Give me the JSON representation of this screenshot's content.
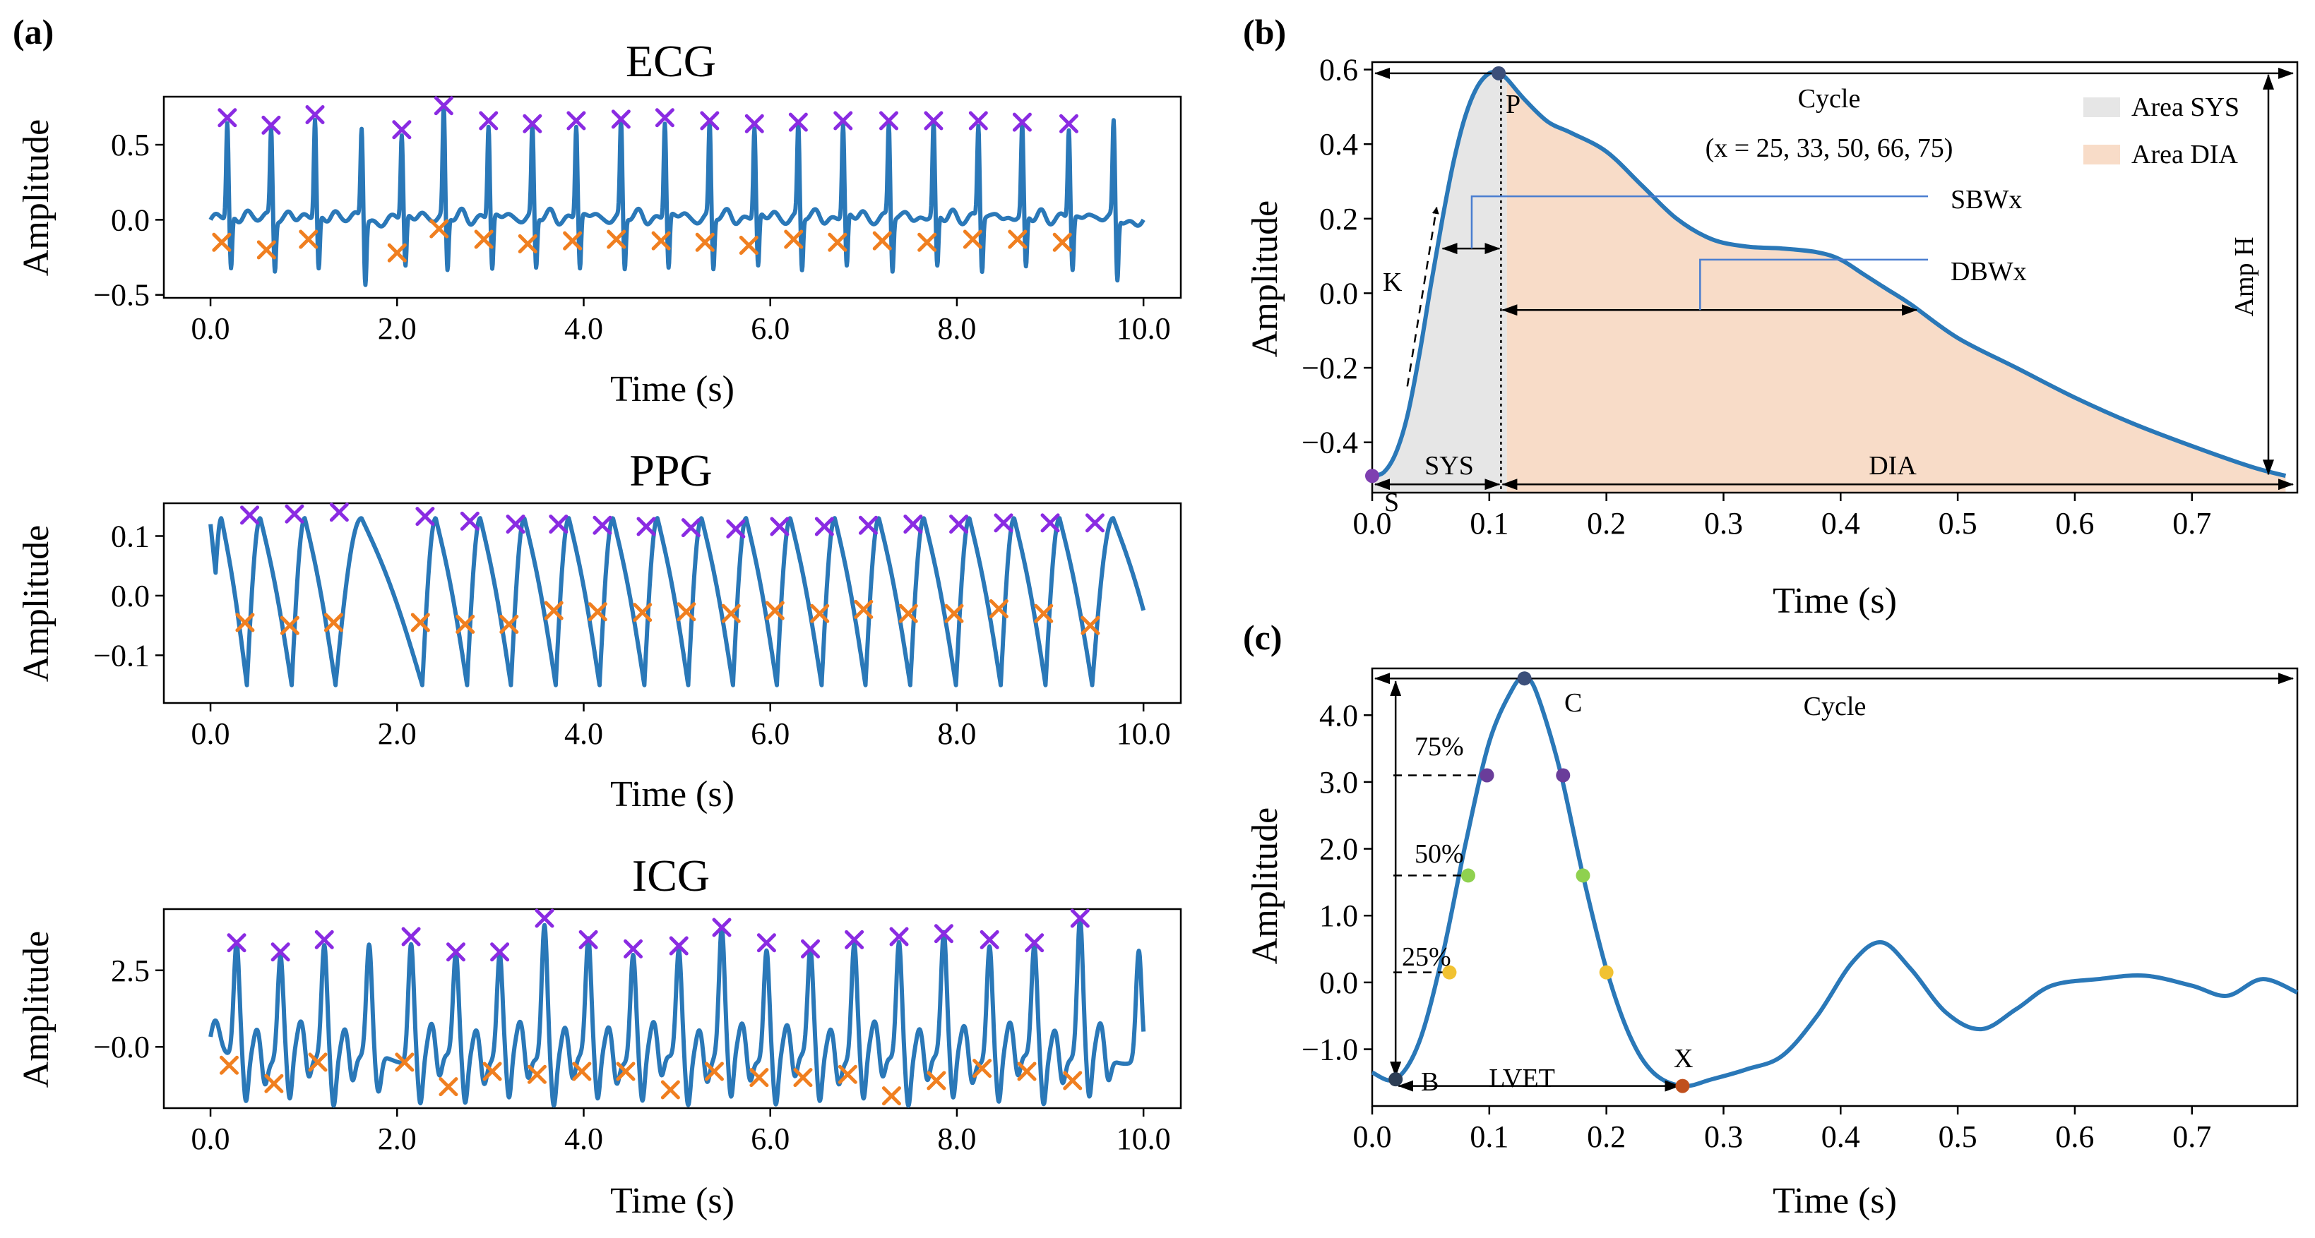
{
  "panel_labels": {
    "a": "(a)",
    "b": "(b)",
    "c": "(c)"
  },
  "chart_data": [
    {
      "id": "ecg",
      "type": "line",
      "title": "ECG",
      "xlabel": "Time (s)",
      "ylabel": "Amplitude",
      "xlim": [
        -0.5,
        10.4
      ],
      "ylim": [
        -0.52,
        0.82
      ],
      "xticks": [
        0,
        2,
        4,
        6,
        8,
        10
      ],
      "xtick_labels": [
        "0.0",
        "2.0",
        "4.0",
        "6.0",
        "8.0",
        "10.0"
      ],
      "yticks": [
        -0.5,
        0,
        0.5
      ],
      "ytick_labels": [
        "−0.5",
        "0.0",
        "0.5"
      ],
      "peaks_x": [
        0.18,
        0.65,
        1.12,
        2.05,
        2.5,
        2.98,
        3.45,
        3.92,
        4.4,
        4.87,
        5.35,
        5.83,
        6.3,
        6.78,
        7.27,
        7.75,
        8.23,
        8.7,
        9.2
      ],
      "peaks_y": [
        0.68,
        0.63,
        0.7,
        0.6,
        0.76,
        0.66,
        0.64,
        0.66,
        0.67,
        0.68,
        0.66,
        0.64,
        0.65,
        0.66,
        0.66,
        0.66,
        0.66,
        0.65,
        0.64
      ],
      "troughs_x": [
        0.12,
        0.6,
        1.05,
        2.0,
        2.45,
        2.93,
        3.4,
        3.88,
        4.35,
        4.83,
        5.3,
        5.77,
        6.25,
        6.72,
        7.2,
        7.68,
        8.17,
        8.65,
        9.13
      ],
      "troughs_y": [
        -0.15,
        -0.2,
        -0.13,
        -0.22,
        -0.06,
        -0.13,
        -0.16,
        -0.14,
        -0.13,
        -0.14,
        -0.15,
        -0.17,
        -0.13,
        -0.15,
        -0.14,
        -0.15,
        -0.13,
        -0.13,
        -0.15
      ]
    },
    {
      "id": "ppg",
      "type": "line",
      "title": "PPG",
      "xlabel": "Time (s)",
      "ylabel": "Amplitude",
      "xlim": [
        -0.5,
        10.4
      ],
      "ylim": [
        -0.18,
        0.155
      ],
      "xticks": [
        0,
        2,
        4,
        6,
        8,
        10
      ],
      "xtick_labels": [
        "0.0",
        "2.0",
        "4.0",
        "6.0",
        "8.0",
        "10.0"
      ],
      "yticks": [
        -0.1,
        0,
        0.1
      ],
      "ytick_labels": [
        "−0.1",
        "0.0",
        "0.1"
      ],
      "peaks_x": [
        0.42,
        0.9,
        1.38,
        2.3,
        2.78,
        3.27,
        3.73,
        4.2,
        4.67,
        5.15,
        5.63,
        6.1,
        6.58,
        7.05,
        7.53,
        8.02,
        8.5,
        9.0,
        9.48
      ],
      "peaks_y": [
        0.135,
        0.137,
        0.14,
        0.133,
        0.125,
        0.12,
        0.12,
        0.118,
        0.116,
        0.114,
        0.112,
        0.116,
        0.116,
        0.118,
        0.12,
        0.12,
        0.122,
        0.122,
        0.122
      ],
      "troughs_x": [
        0.37,
        0.85,
        1.32,
        2.25,
        2.73,
        3.2,
        3.68,
        4.15,
        4.63,
        5.1,
        5.58,
        6.05,
        6.53,
        7.0,
        7.48,
        7.97,
        8.45,
        8.93,
        9.43
      ],
      "troughs_y": [
        -0.045,
        -0.05,
        -0.045,
        -0.045,
        -0.048,
        -0.048,
        -0.025,
        -0.027,
        -0.028,
        -0.027,
        -0.03,
        -0.025,
        -0.03,
        -0.023,
        -0.03,
        -0.03,
        -0.022,
        -0.03,
        -0.05
      ]
    },
    {
      "id": "icg",
      "type": "line",
      "title": "ICG",
      "xlabel": "Time (s)",
      "ylabel": "Amplitude",
      "xlim": [
        -0.5,
        10.4
      ],
      "ylim": [
        -2.0,
        4.5
      ],
      "xticks": [
        0,
        2,
        4,
        6,
        8,
        10
      ],
      "xtick_labels": [
        "0.0",
        "2.0",
        "4.0",
        "6.0",
        "8.0",
        "10.0"
      ],
      "yticks": [
        -0.0,
        2.5
      ],
      "ytick_labels": [
        "−0.0",
        "2.5"
      ],
      "peaks_x": [
        0.28,
        0.75,
        1.22,
        2.15,
        2.63,
        3.1,
        3.58,
        4.05,
        4.53,
        5.02,
        5.48,
        5.96,
        6.43,
        6.9,
        7.38,
        7.86,
        8.35,
        8.83,
        9.32
      ],
      "peaks_y": [
        3.4,
        3.1,
        3.5,
        3.6,
        3.1,
        3.1,
        4.2,
        3.5,
        3.2,
        3.3,
        3.9,
        3.4,
        3.2,
        3.5,
        3.6,
        3.7,
        3.5,
        3.4,
        4.2
      ],
      "troughs_x": [
        0.2,
        0.68,
        1.15,
        2.08,
        2.55,
        3.02,
        3.5,
        3.98,
        4.45,
        4.93,
        5.4,
        5.88,
        6.35,
        6.83,
        7.3,
        7.78,
        8.27,
        8.75,
        9.24
      ],
      "troughs_y": [
        -0.6,
        -1.2,
        -0.5,
        -0.5,
        -1.3,
        -0.8,
        -0.9,
        -0.8,
        -0.8,
        -1.4,
        -0.8,
        -1.0,
        -1.0,
        -0.9,
        -1.6,
        -1.1,
        -0.7,
        -0.8,
        -1.1
      ]
    },
    {
      "id": "ppg_cycle",
      "type": "area",
      "xlabel": "Time (s)",
      "ylabel": "Amplitude",
      "xlim": [
        0,
        0.79
      ],
      "ylim": [
        -0.535,
        0.62
      ],
      "xticks": [
        0,
        0.1,
        0.2,
        0.3,
        0.4,
        0.5,
        0.6,
        0.7
      ],
      "xtick_labels": [
        "0.0",
        "0.1",
        "0.2",
        "0.3",
        "0.4",
        "0.5",
        "0.6",
        "0.7"
      ],
      "yticks": [
        -0.4,
        -0.2,
        0,
        0.2,
        0.4,
        0.6
      ],
      "ytick_labels": [
        "−0.4",
        "−0.2",
        "0.0",
        "0.2",
        "0.4",
        "0.6"
      ],
      "curve_x": [
        0,
        0.01,
        0.02,
        0.03,
        0.04,
        0.05,
        0.06,
        0.07,
        0.08,
        0.09,
        0.1,
        0.108,
        0.115,
        0.13,
        0.15,
        0.17,
        0.2,
        0.23,
        0.26,
        0.29,
        0.32,
        0.35,
        0.38,
        0.4,
        0.42,
        0.44,
        0.46,
        0.5,
        0.55,
        0.6,
        0.65,
        0.7,
        0.75,
        0.78
      ],
      "curve_y": [
        -0.49,
        -0.48,
        -0.43,
        -0.33,
        -0.17,
        0.02,
        0.2,
        0.36,
        0.48,
        0.555,
        0.59,
        0.59,
        0.575,
        0.52,
        0.46,
        0.43,
        0.38,
        0.29,
        0.2,
        0.145,
        0.125,
        0.12,
        0.11,
        0.09,
        0.05,
        0.01,
        -0.03,
        -0.12,
        -0.2,
        -0.28,
        -0.35,
        -0.41,
        -0.465,
        -0.49
      ],
      "peak_x": 0.108,
      "peak_y": 0.59,
      "start_x": 0.0,
      "start_y": -0.49,
      "end_x": 0.78,
      "end_y": -0.49,
      "sys_end_x": 0.11,
      "legend": [
        {
          "label": "Area SYS",
          "color": "#e6e6e6"
        },
        {
          "label": "Area DIA",
          "color": "#f8dcc8"
        }
      ],
      "annotations": {
        "cycle": "Cycle",
        "x_values": "(x = 25, 33, 50, 66, 75)",
        "sbw": "SBWx",
        "dbw": "DBWx",
        "k": "K",
        "amp_h": "Amp H",
        "sys": "SYS",
        "dia": "DIA",
        "p": "P",
        "s": "S"
      }
    },
    {
      "id": "icg_cycle",
      "type": "line",
      "xlabel": "Time (s)",
      "ylabel": "Amplitude",
      "xlim": [
        0,
        0.79
      ],
      "ylim": [
        -1.85,
        4.7
      ],
      "xticks": [
        0,
        0.1,
        0.2,
        0.3,
        0.4,
        0.5,
        0.6,
        0.7
      ],
      "xtick_labels": [
        "0.0",
        "0.1",
        "0.2",
        "0.3",
        "0.4",
        "0.5",
        "0.6",
        "0.7"
      ],
      "yticks": [
        -1,
        0,
        1,
        2,
        3,
        4
      ],
      "ytick_labels": [
        "−1.0",
        "0.0",
        "1.0",
        "2.0",
        "3.0",
        "4.0"
      ],
      "curve_x": [
        0,
        0.02,
        0.04,
        0.06,
        0.08,
        0.1,
        0.12,
        0.13,
        0.14,
        0.16,
        0.18,
        0.2,
        0.22,
        0.24,
        0.265,
        0.29,
        0.32,
        0.35,
        0.38,
        0.41,
        0.435,
        0.46,
        0.49,
        0.52,
        0.55,
        0.58,
        0.62,
        0.66,
        0.7,
        0.73,
        0.76,
        0.79
      ],
      "curve_y": [
        -1.35,
        -1.45,
        -0.9,
        0.4,
        2.1,
        3.6,
        4.4,
        4.55,
        4.35,
        3.2,
        1.6,
        0.2,
        -0.8,
        -1.35,
        -1.55,
        -1.45,
        -1.3,
        -1.1,
        -0.5,
        0.3,
        0.6,
        0.2,
        -0.45,
        -0.7,
        -0.4,
        -0.05,
        0.05,
        0.1,
        -0.05,
        -0.2,
        0.05,
        -0.15
      ],
      "points": [
        {
          "name": "B",
          "x": 0.02,
          "y": -1.45,
          "color": "#2d3e55"
        },
        {
          "name": "C",
          "x": 0.13,
          "y": 4.55,
          "color": "#3c4f7a"
        },
        {
          "name": "75-rise",
          "x": 0.098,
          "y": 3.1,
          "color": "#6a3d9a"
        },
        {
          "name": "75-fall",
          "x": 0.163,
          "y": 3.1,
          "color": "#6a3d9a"
        },
        {
          "name": "50-rise",
          "x": 0.082,
          "y": 1.6,
          "color": "#8fd14f"
        },
        {
          "name": "50-fall",
          "x": 0.18,
          "y": 1.6,
          "color": "#8fd14f"
        },
        {
          "name": "25-rise",
          "x": 0.066,
          "y": 0.15,
          "color": "#f1c232"
        },
        {
          "name": "25-fall",
          "x": 0.2,
          "y": 0.15,
          "color": "#f1c232"
        },
        {
          "name": "X",
          "x": 0.265,
          "y": -1.55,
          "color": "#c0501d"
        }
      ],
      "annotations": {
        "cycle": "Cycle",
        "c": "C",
        "b": "B",
        "x": "X",
        "lvet": "LVET",
        "p75": "75%",
        "p50": "50%",
        "p25": "25%"
      }
    }
  ],
  "colors": {
    "line": "#2a78b8",
    "peak_marker": "#8a2be2",
    "trough_marker": "#f07f20"
  }
}
